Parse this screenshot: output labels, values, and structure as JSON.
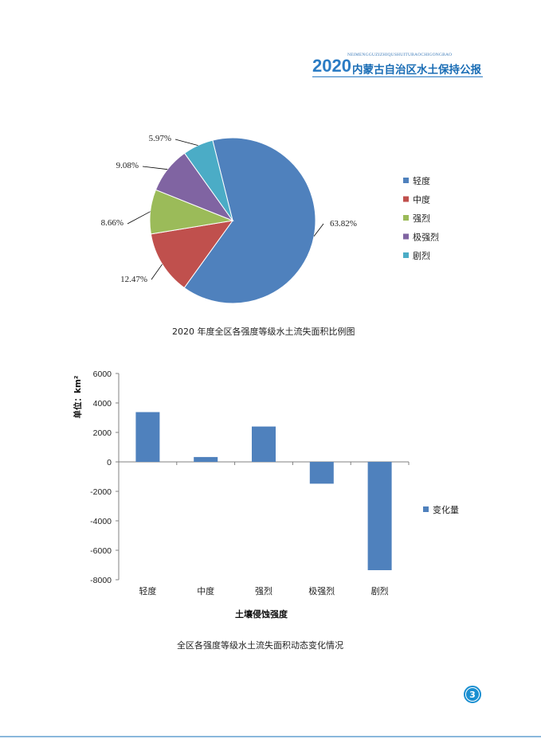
{
  "header": {
    "pinyin": "NEIMENGGUZIZHIQUSHUITUBAOCHIGONGBAO",
    "year": "2020",
    "title": "内蒙古自治区水土保持公报"
  },
  "chart_data": [
    {
      "type": "pie",
      "title": "2020 年度全区各强度等级水土流失面积比例图",
      "categories": [
        "轻度",
        "中度",
        "强烈",
        "极强烈",
        "剧烈"
      ],
      "values": [
        63.82,
        12.47,
        8.66,
        9.08,
        5.97
      ],
      "labels": [
        "63.82%",
        "12.47%",
        "8.66%",
        "9.08%",
        "5.97%"
      ],
      "colors": [
        "#4f81bd",
        "#c0504d",
        "#9bbb59",
        "#8064a2",
        "#4bacc6"
      ],
      "legend": "right"
    },
    {
      "type": "bar",
      "title": "全区各强度等级水土流失面积动态变化情况",
      "categories": [
        "轻度",
        "中度",
        "强烈",
        "极强烈",
        "剧烈"
      ],
      "series": [
        {
          "name": "变化量",
          "values": [
            3380,
            330,
            2400,
            -1480,
            -7350
          ],
          "color": "#4f81bd"
        }
      ],
      "xlabel": "土壤侵蚀强度",
      "ylabel": "单位：km²",
      "ylim": [
        -8000,
        6000
      ],
      "yticks": [
        "6000",
        "4000",
        "2000",
        "0",
        "-2000",
        "-4000",
        "-6000",
        "-8000"
      ],
      "grid": false,
      "legend": "right"
    }
  ],
  "page": {
    "number": "3"
  }
}
